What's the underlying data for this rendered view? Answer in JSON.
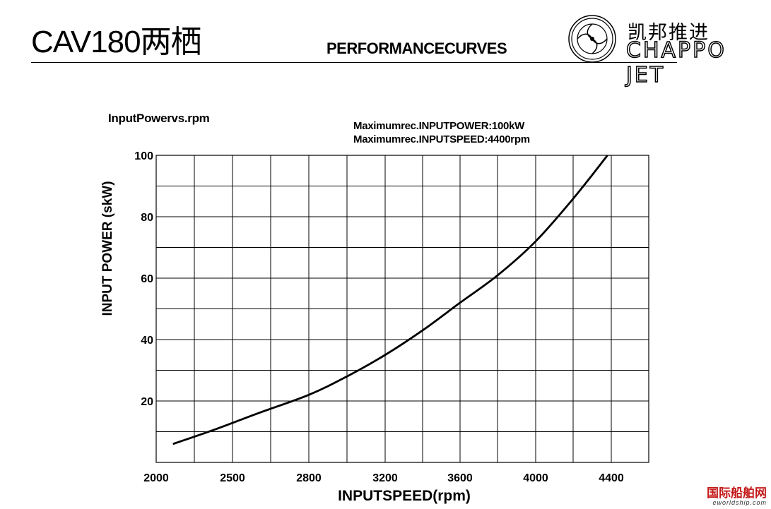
{
  "header": {
    "model": "CAV180两栖",
    "heading": "PERFORMANCECURVES",
    "brand_cn": "凯邦推进",
    "brand_en": "CHAPPO JET"
  },
  "chart": {
    "title": "InputPowervs.rpm",
    "spec_power": "Maximumrec.INPUTPOWER:100kW",
    "spec_speed": "Maximumrec.INPUTSPEED:4400rpm"
  },
  "watermark": {
    "main": "国际船舶网",
    "sub": "eworldship.com"
  },
  "chart_data": {
    "type": "line",
    "xlabel": "INPUTSPEED(rpm)",
    "ylabel": "INPUT POWER (skW)",
    "xlim": [
      2000,
      4600
    ],
    "ylim": [
      0,
      100
    ],
    "x_ticks": [
      2000,
      2500,
      2800,
      3200,
      3600,
      4000,
      4400
    ],
    "y_ticks": [
      20,
      40,
      60,
      80,
      100
    ],
    "grid": true,
    "series": [
      {
        "x": [
          2110,
          2400,
          2600,
          2800,
          3000,
          3200,
          3400,
          3600,
          3800,
          4000,
          4200,
          4380
        ],
        "values": [
          6,
          11,
          16,
          22,
          28,
          35,
          43,
          52,
          61,
          72,
          86,
          100
        ]
      }
    ],
    "colors": {
      "line": "#000000",
      "grid": "#000000"
    }
  }
}
